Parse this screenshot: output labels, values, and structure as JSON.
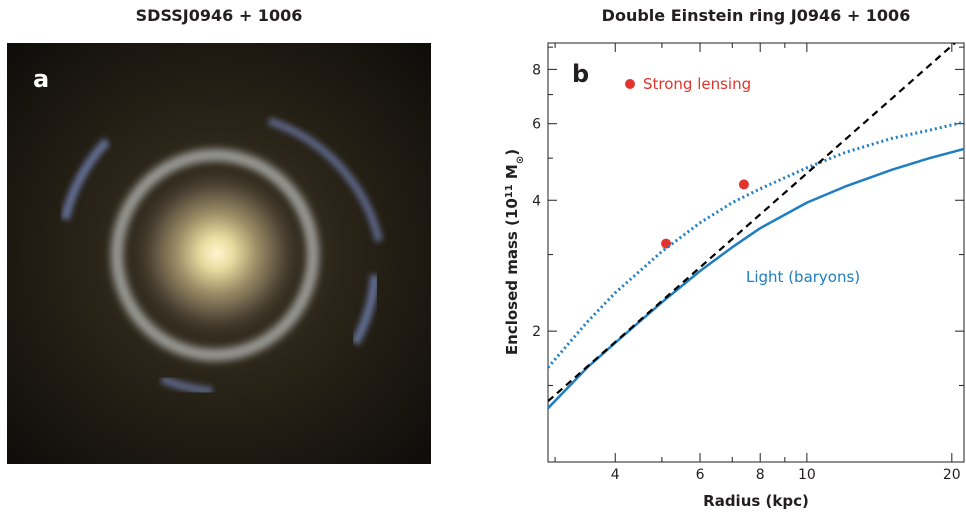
{
  "panel_a": {
    "title": "SDSSJ0946 + 1006",
    "label": "a"
  },
  "chart_data": {
    "type": "line",
    "title": "Double Einstein ring J0946 + 1006",
    "panel_label": "b",
    "xlabel": "Radius (kpc)",
    "ylabel_main": "Enclosed mass (10",
    "ylabel_sup": "11",
    "ylabel_unit": " M",
    "ylabel_sub": "⊙",
    "ylabel_close": ")",
    "xscale": "log",
    "yscale": "log",
    "xlim": [
      2.9,
      21.2
    ],
    "ylim": [
      1.0,
      9.2
    ],
    "xticks": [
      4,
      6,
      8,
      10,
      20
    ],
    "yticks": [
      2,
      4,
      6,
      8
    ],
    "xminor": [
      3,
      5,
      7,
      9
    ],
    "yminor": [
      1.5,
      3,
      5,
      7,
      9
    ],
    "grid": false,
    "legend_label": "Strong lensing",
    "series": [
      {
        "name": "Strong lensing",
        "kind": "points",
        "color": "#e2342c",
        "x": [
          5.1,
          7.4
        ],
        "y": [
          3.18,
          4.35
        ]
      },
      {
        "name": "Light (baryons)",
        "kind": "solid",
        "color": "#1f7ec2",
        "x": [
          2.9,
          3.5,
          4.0,
          5.0,
          6.0,
          7.0,
          8.0,
          10.0,
          12.0,
          15.0,
          18.0,
          21.2
        ],
        "y": [
          1.33,
          1.65,
          1.88,
          2.33,
          2.75,
          3.12,
          3.45,
          3.95,
          4.3,
          4.7,
          5.0,
          5.25
        ]
      },
      {
        "kind": "dotted",
        "color": "#1f7ec2",
        "x": [
          2.9,
          3.5,
          4.0,
          5.0,
          6.0,
          7.0,
          8.0,
          10.0,
          12.0,
          15.0,
          18.0,
          21.2
        ],
        "y": [
          1.65,
          2.1,
          2.45,
          3.05,
          3.55,
          3.95,
          4.25,
          4.75,
          5.15,
          5.55,
          5.8,
          6.05
        ]
      },
      {
        "kind": "dashed",
        "color": "#000000",
        "x": [
          2.9,
          20.3
        ],
        "y": [
          1.38,
          9.2
        ]
      }
    ],
    "light_label": "Light (baryons)",
    "colors": {
      "lensing": "#e2342c",
      "light": "#1f7ec2",
      "axis": "#231f20"
    }
  }
}
